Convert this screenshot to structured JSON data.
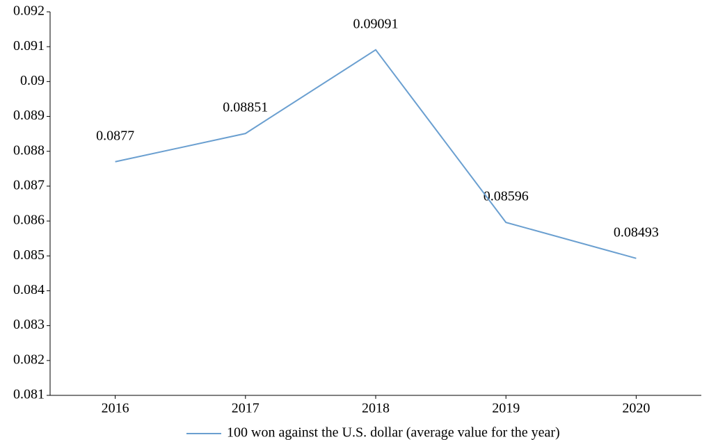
{
  "chart_data": {
    "type": "line",
    "categories": [
      "2016",
      "2017",
      "2018",
      "2019",
      "2020"
    ],
    "series": [
      {
        "name": "100 won against the U.S. dollar (average value for the year)",
        "color": "#6a9fd0",
        "values": [
          0.0877,
          0.08851,
          0.09091,
          0.08596,
          0.08493
        ]
      }
    ],
    "ylim": [
      0.081,
      0.092
    ],
    "yticks": [
      0.081,
      0.082,
      0.083,
      0.084,
      0.085,
      0.086,
      0.087,
      0.088,
      0.089,
      0.09,
      0.091,
      0.092
    ],
    "grid": false,
    "legend": "bottom"
  }
}
